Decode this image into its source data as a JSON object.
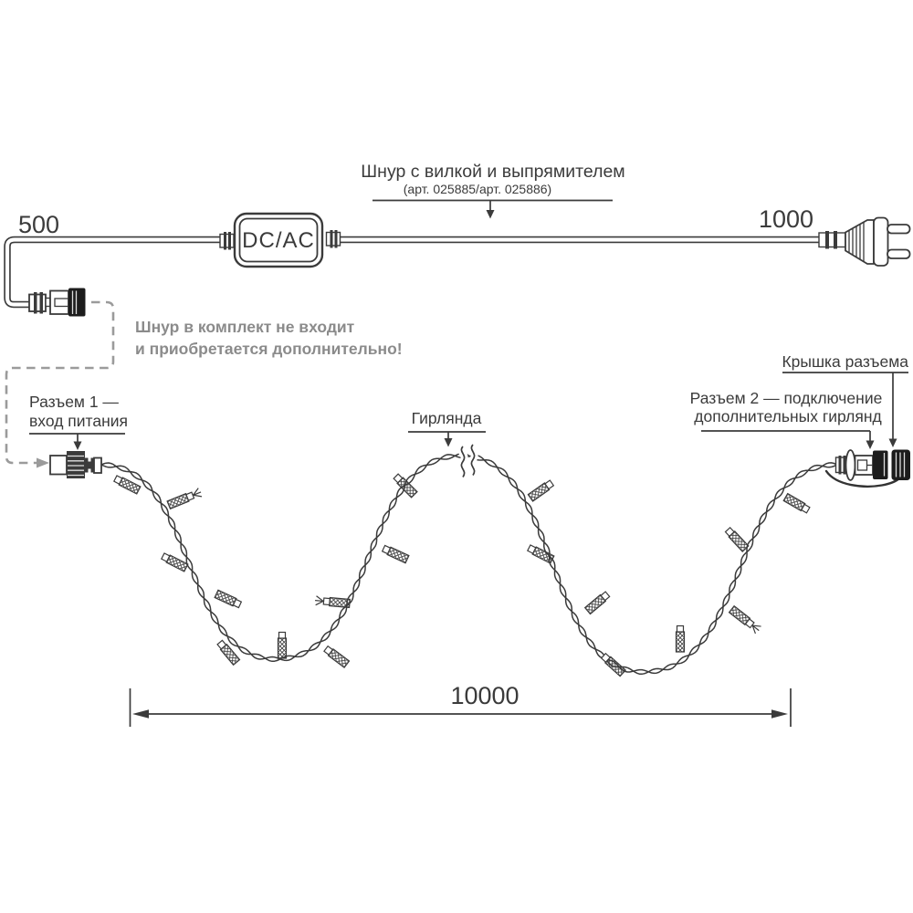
{
  "diagram": {
    "cord_note": {
      "title": "Шнур с вилкой и выпрямителем",
      "subtitle": "(арт. 025885/арт. 025886)"
    },
    "dims": {
      "cord_left": "500",
      "cord_right": "1000",
      "garland_length": "10000"
    },
    "converter_label": "DC/AC",
    "warning": {
      "line1": "Шнур в комплект не входит",
      "line2": "и приобретается дополнительно!"
    },
    "connector1_label": {
      "line1": "Разъем 1 —",
      "line2": "вход питания"
    },
    "garland_label": "Гирлянда",
    "cap_label": "Крышка разъема",
    "connector2_label": {
      "line1": "Разъем 2 — подключение",
      "line2": "дополнительных гирлянд"
    },
    "colors": {
      "line": "#3b3b3b",
      "muted_text": "#8b8b8b",
      "dashed": "#9b9b9b",
      "black_fill": "#1c1c1c"
    }
  }
}
